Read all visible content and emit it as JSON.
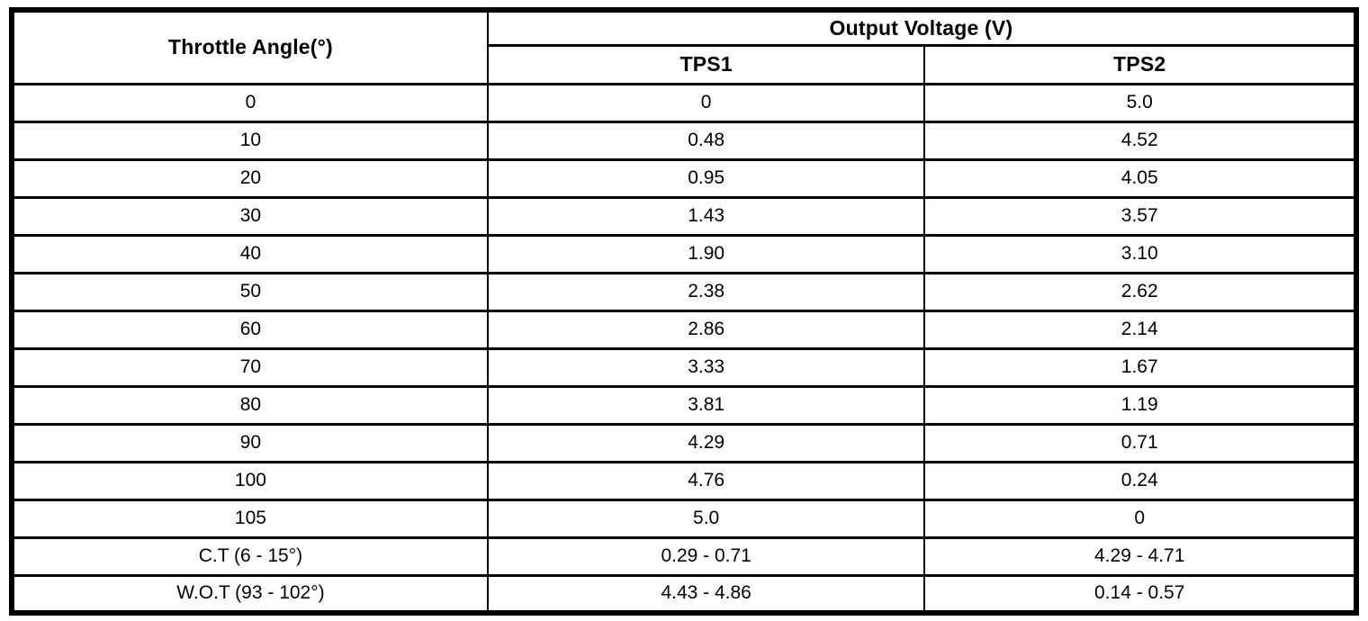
{
  "table": {
    "angle_header": "Throttle Angle(°)",
    "group_header": "Output Voltage (V)",
    "sub_headers": [
      "TPS1",
      "TPS2"
    ],
    "rows": [
      {
        "angle": "0",
        "tps1": "0",
        "tps2": "5.0"
      },
      {
        "angle": "10",
        "tps1": "0.48",
        "tps2": "4.52"
      },
      {
        "angle": "20",
        "tps1": "0.95",
        "tps2": "4.05"
      },
      {
        "angle": "30",
        "tps1": "1.43",
        "tps2": "3.57"
      },
      {
        "angle": "40",
        "tps1": "1.90",
        "tps2": "3.10"
      },
      {
        "angle": "50",
        "tps1": "2.38",
        "tps2": "2.62"
      },
      {
        "angle": "60",
        "tps1": "2.86",
        "tps2": "2.14"
      },
      {
        "angle": "70",
        "tps1": "3.33",
        "tps2": "1.67"
      },
      {
        "angle": "80",
        "tps1": "3.81",
        "tps2": "1.19"
      },
      {
        "angle": "90",
        "tps1": "4.29",
        "tps2": "0.71"
      },
      {
        "angle": "100",
        "tps1": "4.76",
        "tps2": "0.24"
      },
      {
        "angle": "105",
        "tps1": "5.0",
        "tps2": "0"
      },
      {
        "angle": "C.T (6 - 15°)",
        "tps1": "0.29 - 0.71",
        "tps2": "4.29 - 4.71"
      },
      {
        "angle": "W.O.T (93 - 102°)",
        "tps1": "4.43 - 4.86",
        "tps2": "0.14 - 0.57"
      }
    ],
    "colors": {
      "border": "#000000",
      "background": "#ffffff",
      "text": "#000000"
    }
  }
}
